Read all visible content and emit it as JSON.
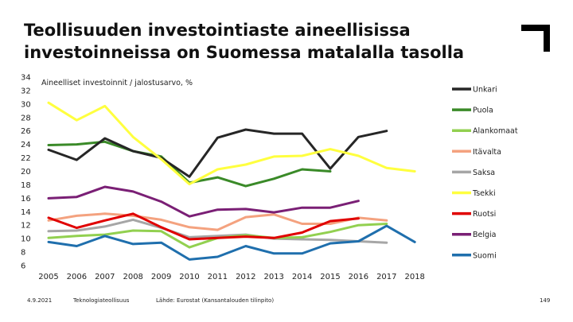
{
  "slide": {
    "title_line1": "Teollisuuden investointiaste aineellisissa",
    "title_line2": "investoinneissa on Suomessa matalalla tasolla"
  },
  "footer": {
    "date": "4.9.2021",
    "organization": "Teknologiateollisuus",
    "source": "Lähde: Eurostat (Kansantalouden tilinpito)",
    "page_number": "149"
  },
  "chart_data": {
    "type": "line",
    "title": "",
    "ylabel": "Aineelliset investoinnit / jalostusarvo, %",
    "xlabel": "",
    "ylim": [
      6,
      34
    ],
    "yticks": [
      6,
      8,
      10,
      12,
      14,
      16,
      18,
      20,
      22,
      24,
      26,
      28,
      30,
      32,
      34
    ],
    "x": [
      2005,
      2006,
      2007,
      2008,
      2009,
      2010,
      2011,
      2012,
      2013,
      2014,
      2015,
      2016,
      2017,
      2018
    ],
    "legend_position": "right",
    "series": [
      {
        "name": "Unkari",
        "color": "#262626",
        "values": [
          23.2,
          21.7,
          24.9,
          23.0,
          22.0,
          19.2,
          25.0,
          26.2,
          25.6,
          25.6,
          20.4,
          25.1,
          26.0,
          null
        ]
      },
      {
        "name": "Puola",
        "color": "#3a8a28",
        "values": [
          23.9,
          24.0,
          24.4,
          23.0,
          22.2,
          18.3,
          19.1,
          17.8,
          18.9,
          20.3,
          20.0,
          null,
          null,
          null
        ]
      },
      {
        "name": "Alankomaat",
        "color": "#92d050",
        "values": [
          10.1,
          10.4,
          10.6,
          11.2,
          11.1,
          8.7,
          10.1,
          10.5,
          10.1,
          10.2,
          11.0,
          12.0,
          12.2,
          null
        ]
      },
      {
        "name": "Itävalta",
        "color": "#f4a27f",
        "values": [
          12.7,
          13.4,
          13.7,
          13.4,
          12.8,
          11.7,
          11.3,
          13.2,
          13.6,
          12.2,
          12.2,
          13.1,
          12.7,
          null
        ]
      },
      {
        "name": "Saksa",
        "color": "#a6a6a6",
        "values": [
          11.1,
          11.2,
          11.8,
          12.8,
          11.6,
          10.2,
          10.4,
          10.6,
          10.0,
          9.9,
          9.8,
          9.6,
          9.4,
          null
        ]
      },
      {
        "name": "Tsekki",
        "color": "#ffff3f",
        "values": [
          30.2,
          27.6,
          29.7,
          25.1,
          21.8,
          18.1,
          20.3,
          21.0,
          22.2,
          22.3,
          23.3,
          22.3,
          20.5,
          20.0
        ]
      },
      {
        "name": "Ruotsi",
        "color": "#e00000",
        "values": [
          13.1,
          11.6,
          12.7,
          13.7,
          11.7,
          9.9,
          10.1,
          10.3,
          10.1,
          10.9,
          12.6,
          13.0,
          null,
          null
        ]
      },
      {
        "name": "Belgia",
        "color": "#7a1f75",
        "values": [
          16.0,
          16.2,
          17.7,
          17.0,
          15.5,
          13.3,
          14.3,
          14.4,
          13.9,
          14.6,
          14.6,
          15.6,
          null,
          null
        ]
      },
      {
        "name": "Suomi",
        "color": "#1f6fad",
        "values": [
          9.5,
          8.9,
          10.4,
          9.2,
          9.4,
          6.9,
          7.3,
          8.9,
          7.8,
          7.8,
          9.3,
          9.6,
          11.9,
          9.5
        ]
      }
    ]
  }
}
